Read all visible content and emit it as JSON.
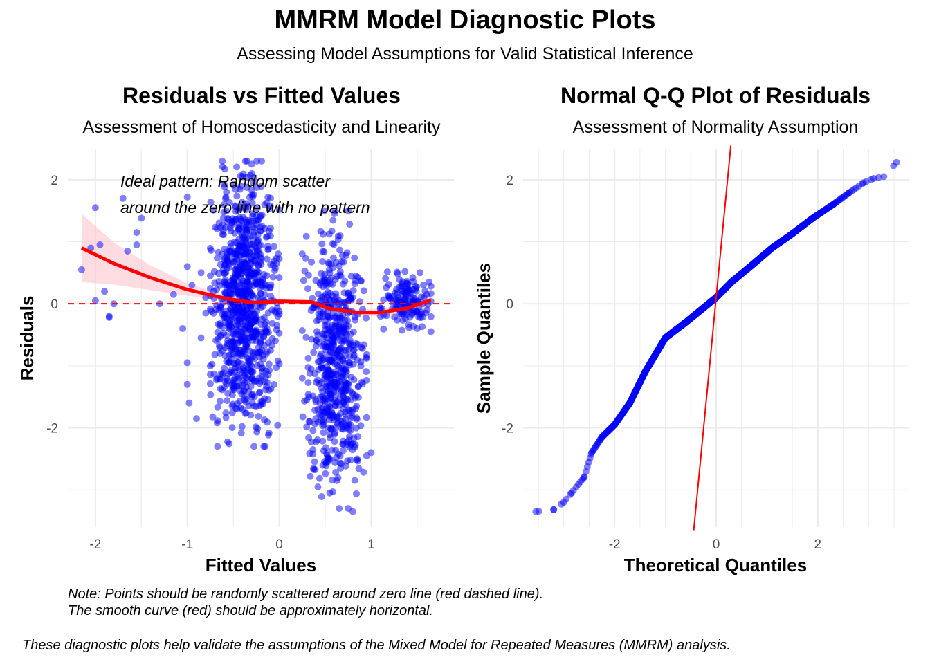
{
  "header": {
    "title": "MMRM Model Diagnostic Plots",
    "subtitle": "Assessing Model Assumptions for Valid Statistical Inference"
  },
  "footer": {
    "note_line1": "Note: Points should be randomly scattered around zero line (red dashed line).",
    "note_line2": "The smooth curve (red) should be approximately horizontal.",
    "caption": "These diagnostic plots help validate the assumptions of the Mixed Model for Repeated Measures (MMRM) analysis."
  },
  "colors": {
    "points": "#0000ff",
    "reference_line": "#ff0000",
    "ribbon": "#ffc0cb",
    "grid": "#ebebeb"
  },
  "chart_data": [
    {
      "type": "scatter",
      "title": "Residuals vs Fitted Values",
      "subtitle": "Assessment of Homoscedasticity and Linearity",
      "xlabel": "Fitted Values",
      "ylabel": "Residuals",
      "xlim": [
        -2.3,
        1.9
      ],
      "ylim": [
        -3.6,
        2.5
      ],
      "x_ticks": [
        -2,
        -1,
        0,
        1
      ],
      "y_ticks": [
        -2,
        0,
        2
      ],
      "grid": true,
      "reference_line": {
        "y": 0,
        "style": "dashed",
        "color": "#ff0000"
      },
      "annotation_line1": "Ideal pattern: Random scatter",
      "annotation_line2": "around the zero line with no pattern",
      "clusters": [
        {
          "x_range": [
            -0.75,
            0.0
          ],
          "y_range": [
            -2.3,
            2.3
          ],
          "n": 900
        },
        {
          "x_range": [
            0.25,
            0.95
          ],
          "y_range": [
            -3.3,
            1.5
          ],
          "n": 620
        },
        {
          "x_range": [
            1.1,
            1.65
          ],
          "y_range": [
            -0.45,
            0.55
          ],
          "n": 140
        }
      ],
      "points": [
        [
          -2.15,
          0.55
        ],
        [
          -2.05,
          0.9
        ],
        [
          -2.0,
          1.55
        ],
        [
          -2.0,
          0.05
        ],
        [
          -1.95,
          0.95
        ],
        [
          -1.9,
          0.2
        ],
        [
          -1.85,
          -0.2
        ],
        [
          -1.85,
          -0.22
        ],
        [
          -1.8,
          0.0
        ],
        [
          -1.7,
          1.7
        ],
        [
          -1.65,
          0.85
        ],
        [
          -1.55,
          1.15
        ],
        [
          -1.55,
          0.95
        ],
        [
          -1.5,
          1.38
        ],
        [
          -1.3,
          0.0
        ],
        [
          -1.15,
          0.15
        ],
        [
          -1.05,
          -0.4
        ],
        [
          -1.0,
          1.72
        ],
        [
          -1.0,
          0.6
        ],
        [
          -1.0,
          -0.95
        ],
        [
          -0.98,
          -1.6
        ],
        [
          -0.95,
          0.3
        ],
        [
          -1.0,
          -1.3
        ],
        [
          -0.9,
          -1.85
        ],
        [
          -0.85,
          0.5
        ],
        [
          -0.85,
          -0.55
        ],
        [
          -0.8,
          -0.15
        ],
        [
          -0.8,
          0.1
        ],
        [
          -0.4,
          2.05
        ],
        [
          -0.3,
          2.25
        ],
        [
          0.55,
          -3.05
        ],
        [
          0.75,
          -3.3
        ],
        [
          0.8,
          -3.35
        ],
        [
          0.95,
          -2.45
        ],
        [
          1.0,
          -2.4
        ],
        [
          1.5,
          -0.4
        ],
        [
          1.63,
          0.35
        ]
      ],
      "smooth": {
        "x": [
          -2.15,
          -1.8,
          -1.4,
          -1.0,
          -0.6,
          -0.3,
          0.0,
          0.35,
          0.55,
          0.85,
          1.1,
          1.4,
          1.65
        ],
        "y": [
          0.9,
          0.65,
          0.42,
          0.23,
          0.09,
          0.02,
          0.04,
          0.03,
          -0.08,
          -0.14,
          -0.14,
          -0.07,
          0.06
        ],
        "se": [
          0.55,
          0.34,
          0.2,
          0.1,
          0.05,
          0.03,
          0.03,
          0.03,
          0.04,
          0.05,
          0.06,
          0.09,
          0.14
        ]
      }
    },
    {
      "type": "scatter",
      "title": "Normal Q-Q Plot of Residuals",
      "subtitle": "Assessment of Normality Assumption",
      "xlabel": "Theoretical Quantiles",
      "ylabel": "Sample Quantiles",
      "xlim": [
        -3.8,
        3.8
      ],
      "ylim": [
        -3.6,
        2.5
      ],
      "x_ticks": [
        -2,
        0,
        2
      ],
      "y_ticks": [
        -2,
        0,
        2
      ],
      "grid": true,
      "reference_line": {
        "intercept": 0.1,
        "slope": 8.5,
        "color": "#ff0000"
      },
      "n": 1800,
      "quantile_curve": {
        "x": [
          -3.55,
          -3.2,
          -3.0,
          -2.85,
          -2.6,
          -2.45,
          -2.25,
          -2.0,
          -1.7,
          -1.4,
          -1.0,
          -0.6,
          -0.3,
          0.0,
          0.3,
          0.7,
          1.1,
          1.5,
          1.9,
          2.3,
          2.6,
          2.9,
          3.1,
          3.3,
          3.55
        ],
        "y": [
          -3.35,
          -3.32,
          -3.2,
          -3.05,
          -2.8,
          -2.4,
          -2.15,
          -1.95,
          -1.6,
          -1.1,
          -0.55,
          -0.3,
          -0.1,
          0.1,
          0.35,
          0.62,
          0.9,
          1.13,
          1.38,
          1.6,
          1.78,
          1.95,
          2.02,
          2.05,
          2.28
        ]
      }
    }
  ]
}
